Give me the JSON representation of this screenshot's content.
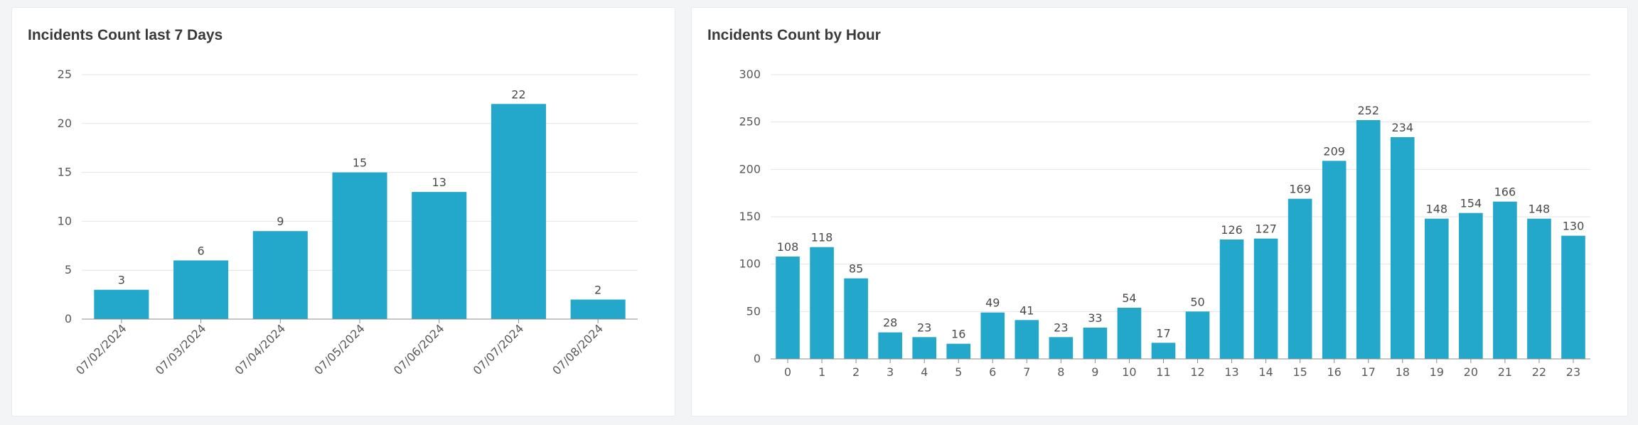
{
  "colors": {
    "bar": "#23a8cc",
    "grid": "#e4e4e4",
    "axis": "#8c8c8c",
    "text": "#595959"
  },
  "chart_data": [
    {
      "type": "bar",
      "title": "Incidents Count last 7 Days",
      "xlabel": "",
      "ylabel": "",
      "categories": [
        "07/02/2024",
        "07/03/2024",
        "07/04/2024",
        "07/05/2024",
        "07/06/2024",
        "07/07/2024",
        "07/08/2024"
      ],
      "values": [
        3,
        6,
        9,
        15,
        13,
        22,
        2
      ],
      "ylim": [
        0,
        25
      ],
      "yticks": [
        0,
        5,
        10,
        15,
        20,
        25
      ],
      "grid": true,
      "rotate_labels": true
    },
    {
      "type": "bar",
      "title": "Incidents Count by Hour",
      "xlabel": "",
      "ylabel": "",
      "categories": [
        "0",
        "1",
        "2",
        "3",
        "4",
        "5",
        "6",
        "7",
        "8",
        "9",
        "10",
        "11",
        "12",
        "13",
        "14",
        "15",
        "16",
        "17",
        "18",
        "19",
        "20",
        "21",
        "22",
        "23"
      ],
      "values": [
        108,
        118,
        85,
        28,
        23,
        16,
        49,
        41,
        23,
        33,
        54,
        17,
        50,
        126,
        127,
        169,
        209,
        252,
        234,
        148,
        154,
        166,
        148,
        130
      ],
      "ylim": [
        0,
        300
      ],
      "yticks": [
        0,
        50,
        100,
        150,
        200,
        250,
        300
      ],
      "grid": true,
      "rotate_labels": false
    }
  ]
}
